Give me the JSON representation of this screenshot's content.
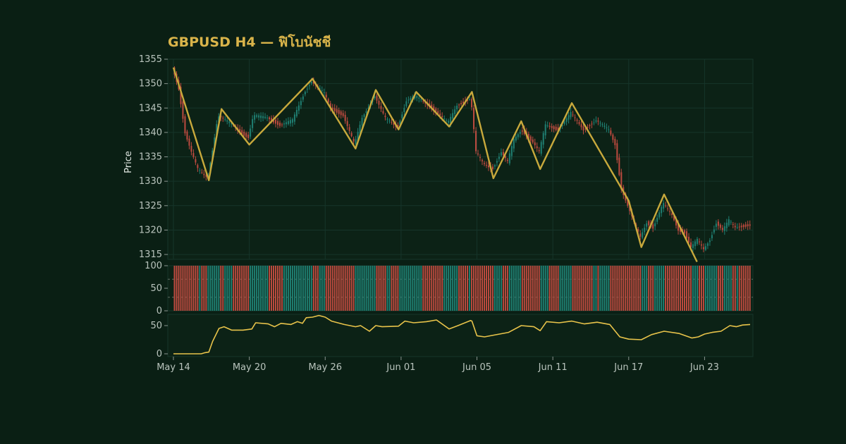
{
  "colors": {
    "background": "#0a1f14",
    "panel": "#0c2216",
    "grid": "#16352a",
    "up": "#1f7f72",
    "down": "#bd4a3f",
    "zigzag": "#c8a93c",
    "indicator_line": "#e8c34a",
    "title": "#d9b44a"
  },
  "chart_data": {
    "type": "candlestick",
    "title": "GBPUSD H4 — ฟิโบนัชชี",
    "ylabel": "Price",
    "ylim": [
      1314,
      1355
    ],
    "yticks": [
      1315,
      1320,
      1325,
      1330,
      1335,
      1340,
      1345,
      1350,
      1355
    ],
    "xlim": [
      0,
      45.6
    ],
    "xticks": [
      {
        "x": 0,
        "label": "May 14"
      },
      {
        "x": 6,
        "label": "May 20"
      },
      {
        "x": 12,
        "label": "May 26"
      },
      {
        "x": 18,
        "label": "Jun 01"
      },
      {
        "x": 24,
        "label": "Jun 05"
      },
      {
        "x": 30,
        "label": "Jun 11"
      },
      {
        "x": 36,
        "label": "Jun 17"
      },
      {
        "x": 42,
        "label": "Jun 23"
      }
    ],
    "zigzag_pivots": [
      [
        0.0,
        1353.3
      ],
      [
        2.8,
        1330.2
      ],
      [
        3.8,
        1344.8
      ],
      [
        6.0,
        1337.5
      ],
      [
        11.0,
        1351.0
      ],
      [
        14.4,
        1336.7
      ],
      [
        16.0,
        1348.7
      ],
      [
        17.8,
        1340.6
      ],
      [
        19.2,
        1348.3
      ],
      [
        21.8,
        1341.2
      ],
      [
        23.6,
        1348.3
      ],
      [
        25.3,
        1330.6
      ],
      [
        27.5,
        1342.3
      ],
      [
        29.0,
        1332.5
      ],
      [
        31.5,
        1346.0
      ],
      [
        36.0,
        1326.0
      ],
      [
        37.0,
        1316.5
      ],
      [
        38.8,
        1327.3
      ],
      [
        41.4,
        1313.5
      ]
    ],
    "ohlc_anchors": [
      [
        0.0,
        1353.3
      ],
      [
        0.5,
        1349.0
      ],
      [
        1.0,
        1340.0
      ],
      [
        1.5,
        1336.0
      ],
      [
        2.0,
        1332.5
      ],
      [
        2.5,
        1331.2
      ],
      [
        2.8,
        1330.8
      ],
      [
        3.2,
        1337.0
      ],
      [
        3.6,
        1343.5
      ],
      [
        4.5,
        1342.0
      ],
      [
        5.5,
        1339.8
      ],
      [
        6.0,
        1339.0
      ],
      [
        6.4,
        1343.5
      ],
      [
        7.5,
        1343.0
      ],
      [
        8.5,
        1341.5
      ],
      [
        9.5,
        1342.5
      ],
      [
        10.5,
        1348.5
      ],
      [
        11.0,
        1350.5
      ],
      [
        12.0,
        1348.0
      ],
      [
        12.5,
        1345.0
      ],
      [
        13.5,
        1343.5
      ],
      [
        14.4,
        1337.5
      ],
      [
        15.0,
        1343.0
      ],
      [
        16.0,
        1347.5
      ],
      [
        16.8,
        1343.0
      ],
      [
        17.8,
        1341.0
      ],
      [
        18.5,
        1346.5
      ],
      [
        19.2,
        1347.5
      ],
      [
        20.5,
        1345.0
      ],
      [
        21.8,
        1342.0
      ],
      [
        22.5,
        1345.5
      ],
      [
        23.6,
        1347.0
      ],
      [
        24.0,
        1336.0
      ],
      [
        24.6,
        1333.5
      ],
      [
        25.3,
        1332.5
      ],
      [
        26.0,
        1336.0
      ],
      [
        26.5,
        1334.0
      ],
      [
        27.0,
        1338.5
      ],
      [
        27.6,
        1340.5
      ],
      [
        28.5,
        1338.0
      ],
      [
        29.0,
        1336.0
      ],
      [
        29.5,
        1341.5
      ],
      [
        30.5,
        1340.5
      ],
      [
        31.5,
        1344.0
      ],
      [
        32.5,
        1340.5
      ],
      [
        33.5,
        1342.5
      ],
      [
        34.5,
        1340.5
      ],
      [
        35.0,
        1337.5
      ],
      [
        35.5,
        1328.5
      ],
      [
        36.0,
        1325.0
      ],
      [
        36.5,
        1321.5
      ],
      [
        37.0,
        1318.5
      ],
      [
        37.5,
        1321.5
      ],
      [
        38.0,
        1320.5
      ],
      [
        38.8,
        1325.5
      ],
      [
        39.5,
        1323.0
      ],
      [
        40.0,
        1320.0
      ],
      [
        40.5,
        1319.5
      ],
      [
        41.0,
        1316.5
      ],
      [
        41.5,
        1318.0
      ],
      [
        42.0,
        1316.0
      ],
      [
        42.5,
        1318.0
      ],
      [
        43.0,
        1321.5
      ],
      [
        43.5,
        1320.0
      ],
      [
        44.0,
        1322.0
      ],
      [
        44.5,
        1320.5
      ],
      [
        45.6,
        1321.0
      ]
    ],
    "panel2": {
      "ylim": [
        0,
        100
      ],
      "yticks": [
        0,
        50,
        100
      ],
      "guide_levels": [
        30,
        70
      ],
      "bar_height": 100
    },
    "panel3": {
      "ylim": [
        -5,
        70
      ],
      "yticks": [
        0,
        50
      ],
      "line_points": [
        [
          0.0,
          0
        ],
        [
          1.5,
          0
        ],
        [
          2.2,
          0
        ],
        [
          2.5,
          2
        ],
        [
          2.8,
          3
        ],
        [
          3.1,
          22
        ],
        [
          3.6,
          45
        ],
        [
          4.0,
          48
        ],
        [
          4.6,
          42
        ],
        [
          5.5,
          42
        ],
        [
          6.2,
          44
        ],
        [
          6.5,
          55
        ],
        [
          7.5,
          53
        ],
        [
          8.0,
          48
        ],
        [
          8.5,
          54
        ],
        [
          9.3,
          52
        ],
        [
          9.8,
          57
        ],
        [
          10.2,
          54
        ],
        [
          10.5,
          64
        ],
        [
          11.0,
          65
        ],
        [
          11.5,
          68
        ],
        [
          12.0,
          65
        ],
        [
          12.5,
          58
        ],
        [
          13.5,
          52
        ],
        [
          14.4,
          48
        ],
        [
          14.8,
          50
        ],
        [
          15.5,
          40
        ],
        [
          16.0,
          50
        ],
        [
          16.5,
          48
        ],
        [
          17.8,
          49
        ],
        [
          18.3,
          58
        ],
        [
          19.0,
          55
        ],
        [
          20.0,
          57
        ],
        [
          20.8,
          60
        ],
        [
          21.8,
          44
        ],
        [
          22.5,
          50
        ],
        [
          23.5,
          59
        ],
        [
          23.6,
          58
        ],
        [
          24.0,
          32
        ],
        [
          24.6,
          30
        ],
        [
          25.3,
          33
        ],
        [
          26.5,
          38
        ],
        [
          27.5,
          50
        ],
        [
          28.5,
          48
        ],
        [
          29.0,
          41
        ],
        [
          29.5,
          57
        ],
        [
          30.5,
          55
        ],
        [
          31.5,
          58
        ],
        [
          32.5,
          53
        ],
        [
          33.5,
          56
        ],
        [
          34.5,
          52
        ],
        [
          35.3,
          30
        ],
        [
          36.0,
          26
        ],
        [
          37.0,
          25
        ],
        [
          37.8,
          34
        ],
        [
          38.8,
          40
        ],
        [
          40.0,
          36
        ],
        [
          41.0,
          28
        ],
        [
          41.5,
          30
        ],
        [
          42.0,
          35
        ],
        [
          42.6,
          38
        ],
        [
          43.3,
          40
        ],
        [
          44.0,
          50
        ],
        [
          44.5,
          48
        ],
        [
          45.0,
          51
        ],
        [
          45.6,
          52
        ]
      ]
    }
  }
}
